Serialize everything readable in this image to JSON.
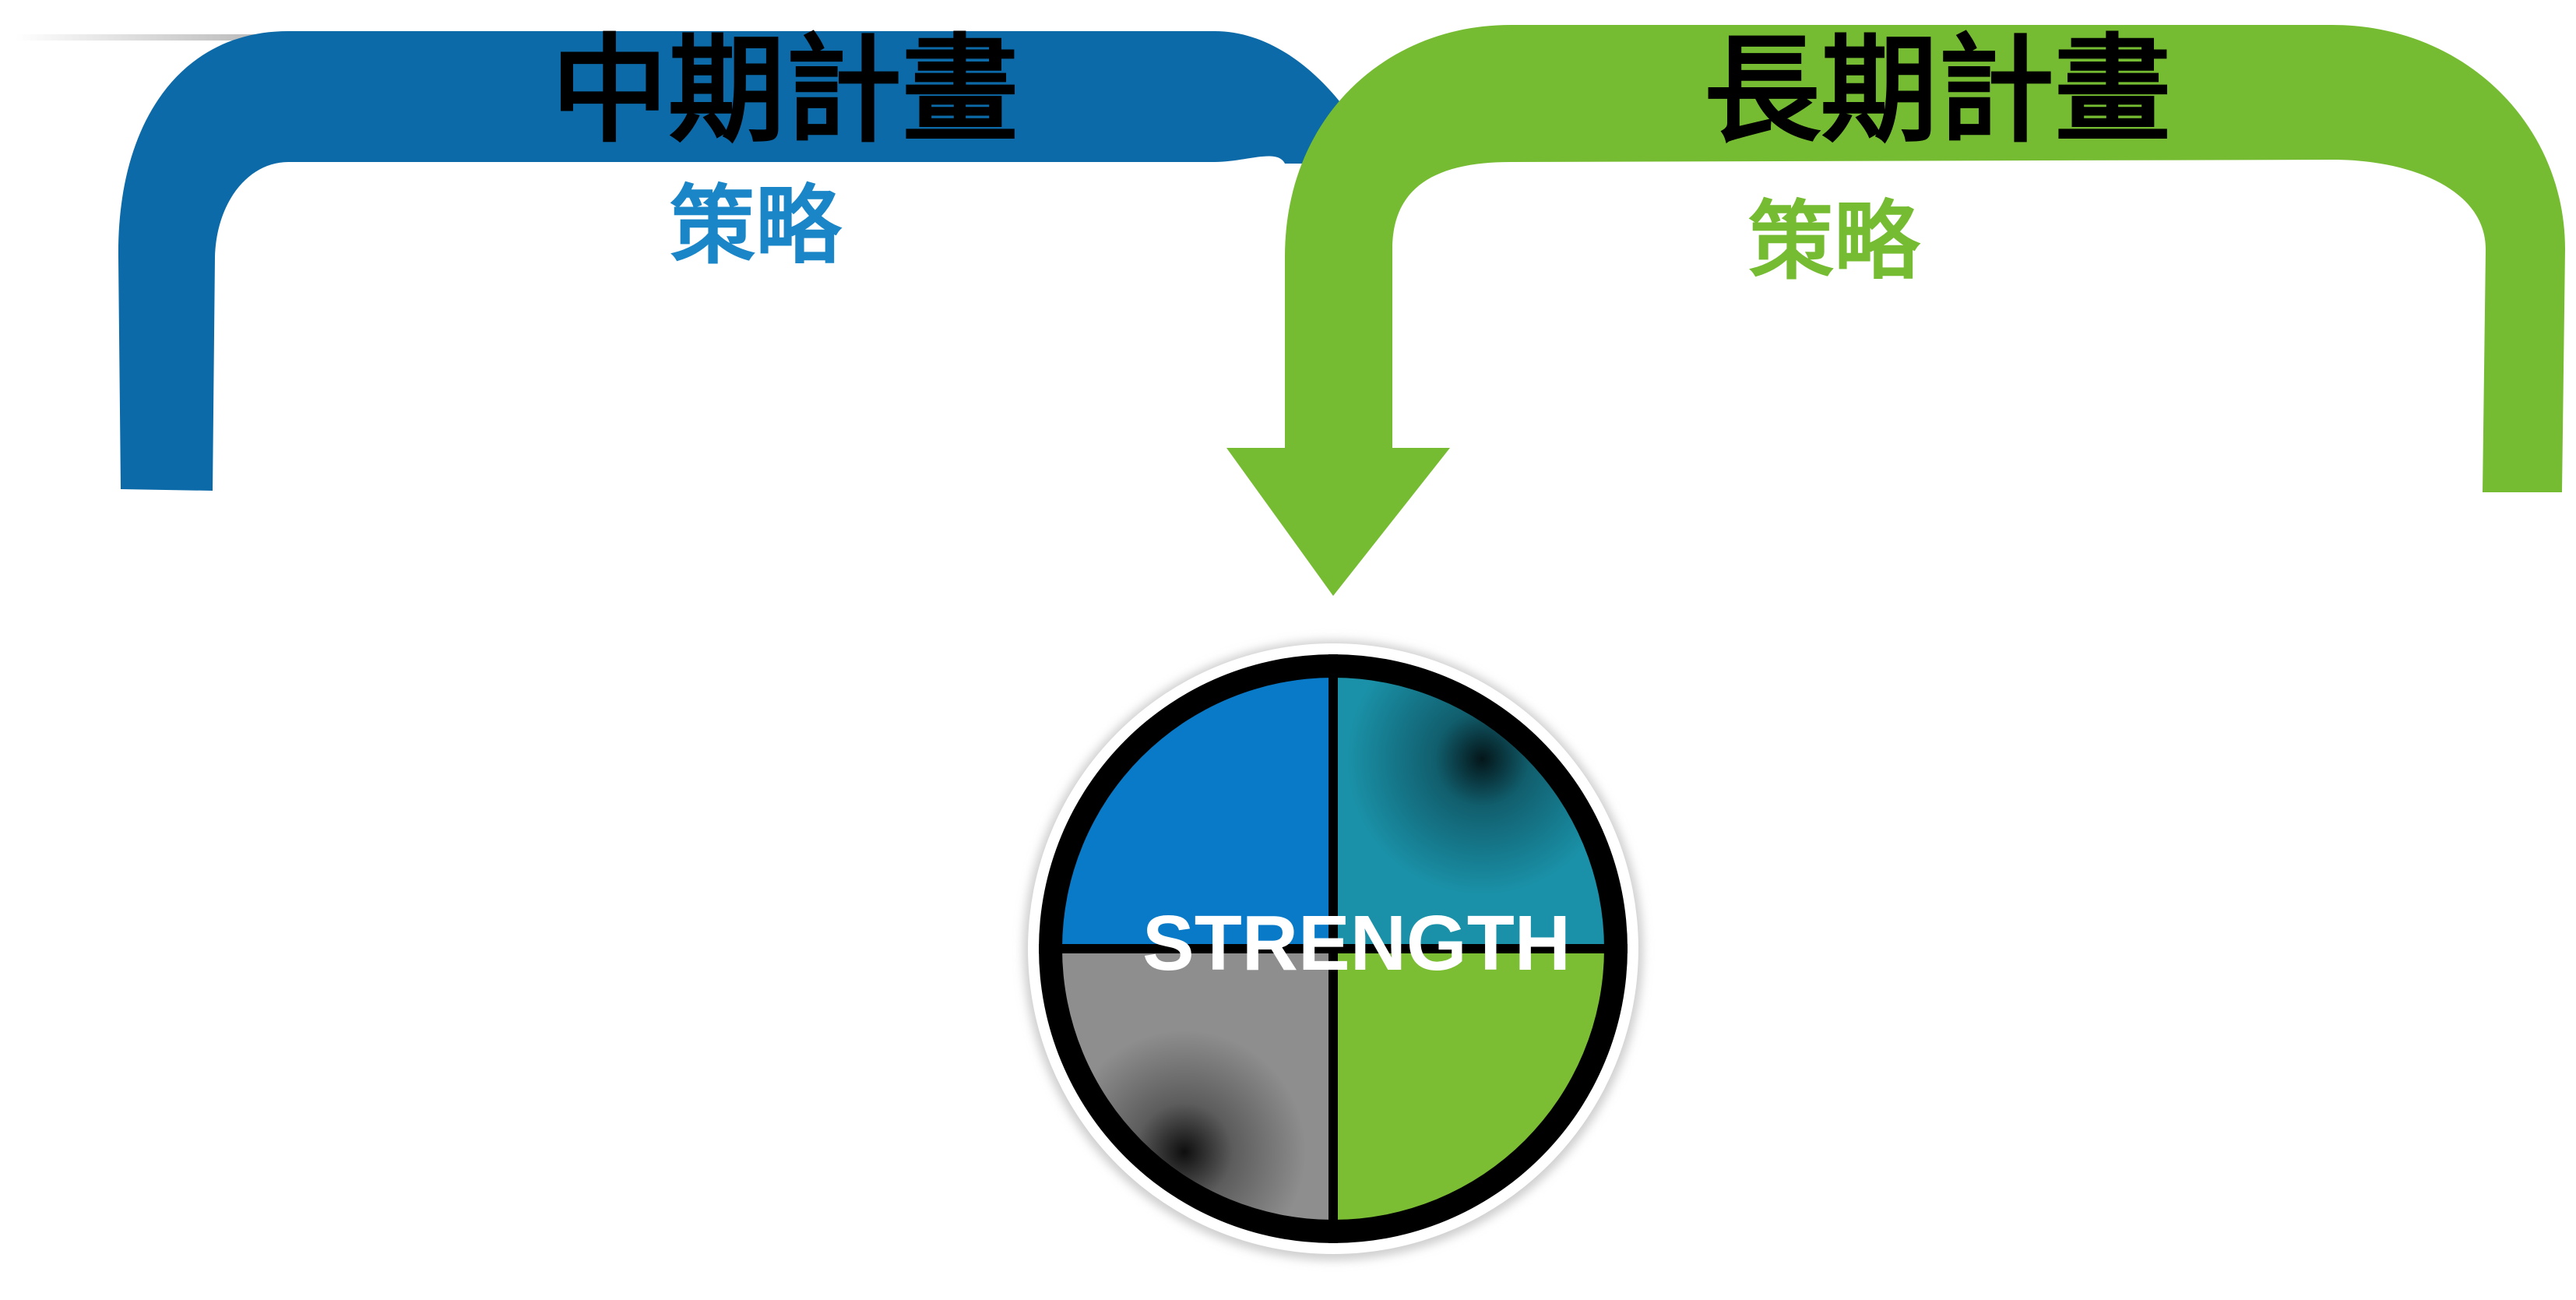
{
  "left_plan": {
    "title": "中期計畫",
    "subtitle": "策略",
    "color": "#0D6AA8",
    "subtitle_color": "#1A86C8"
  },
  "right_plan": {
    "title": "長期計畫",
    "subtitle": "策略",
    "color": "#76BC32",
    "subtitle_color": "#76BC32"
  },
  "center": {
    "label": "STRENGTH",
    "quadrant_colors": {
      "top_left": "#087AC8",
      "top_right": "#1A91A8",
      "bottom_left": "#8E8E8E",
      "bottom_right": "#7BBD33"
    }
  }
}
